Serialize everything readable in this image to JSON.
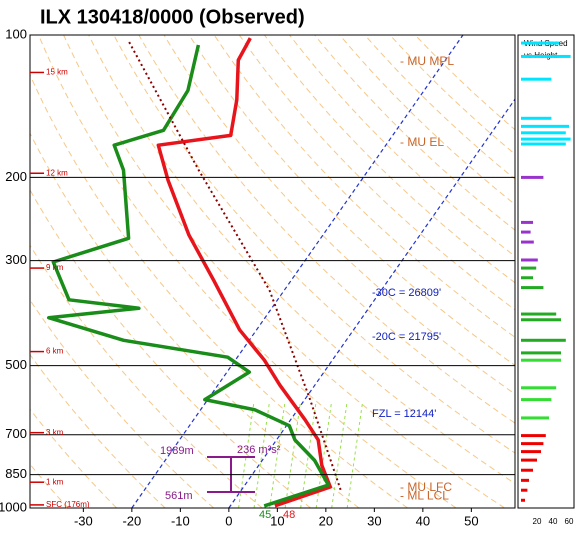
{
  "chart_data": {
    "type": "skew-t",
    "title": "ILX  130418/0000  (Observed)",
    "ylim": [
      100,
      1000
    ],
    "yticks": [
      100,
      200,
      300,
      500,
      700,
      850,
      1000
    ],
    "log_y": true,
    "xlim": [
      -41,
      59
    ],
    "xticks": [
      -30,
      -20,
      -10,
      0,
      10,
      20,
      30,
      40,
      50
    ],
    "series": [
      {
        "color": "#e8141c",
        "line_style": "solid",
        "pressure": [
          990,
          903,
          812,
          718,
          651,
          550,
          487,
          420,
          330,
          265,
          203,
          171,
          163,
          137,
          113,
          101.5
        ],
        "values": [
          9.2,
          17.9,
          13.0,
          8.6,
          3.0,
          -7.2,
          -14,
          -23.5,
          -36,
          -47.6,
          -59.8,
          -66.9,
          -53.4,
          -57.3,
          -62.7,
          -63.4
        ]
      },
      {
        "color": "#1a8c1a",
        "line_style": "solid",
        "pressure": [
          990,
          894,
          793,
          718,
          670,
          620,
          590,
          516,
          480,
          442,
          396,
          378,
          363,
          302,
          269,
          193,
          171,
          159,
          131,
          105
        ],
        "values": [
          7,
          17.2,
          10.8,
          3.8,
          0.6,
          -8.8,
          -20.6,
          -15.4,
          -22,
          -45.9,
          -64.6,
          -47.4,
          -63,
          -71.7,
          -59.6,
          -70.5,
          -76,
          -68,
          -68.7,
          -73.1
        ]
      },
      {
        "color": "#8b0000",
        "line_style": "dotted",
        "pressure": [
          915,
          590,
          346,
          193,
          102.5
        ],
        "values": [
          20.4,
          1.1,
          -23.1,
          -55,
          -88.3
        ]
      }
    ],
    "surface_temps_f": {
      "dewpoint": 45,
      "temperature": 48
    },
    "height_labels": [
      {
        "label": "15 km",
        "pressure": 120
      },
      {
        "label": "12 km",
        "pressure": 196
      },
      {
        "label": "9 km",
        "pressure": 311
      },
      {
        "label": "6 km",
        "pressure": 467
      },
      {
        "label": "3 km",
        "pressure": 693
      },
      {
        "label": "1 km",
        "pressure": 882
      },
      {
        "label": "SFC (176m)",
        "pressure": 985
      }
    ],
    "level_annotations": [
      {
        "label": "- MU MPL",
        "pressure": 114
      },
      {
        "label": "- MU EL",
        "pressure": 169
      },
      {
        "label": "- MU LFC",
        "pressure": 906
      },
      {
        "label": "- ML LCL",
        "pressure": 945
      }
    ],
    "height_annotations": [
      "-30C = 26809'",
      "-20C = 21795'",
      "FZL = 12144'"
    ],
    "helicity": {
      "top": "1989m",
      "value": "236 m²s²",
      "bottom": "561m"
    },
    "wind_profile": {
      "title": [
        "Wind Speed",
        "vs Height"
      ],
      "xlim": [
        0,
        65
      ],
      "xticks": [
        20,
        40,
        60
      ],
      "pressure": [
        104,
        111,
        124,
        150,
        156,
        161,
        166,
        170,
        200,
        249,
        261,
        274,
        299,
        311,
        326,
        342,
        389,
        400,
        442,
        470,
        487,
        557,
        590,
        645,
        703,
        731,
        760,
        792,
        832,
        874,
        917,
        963
      ],
      "values": [
        48,
        62,
        38,
        38,
        60,
        56,
        62,
        56,
        28,
        15,
        12,
        16,
        21,
        19,
        15,
        28,
        44,
        50,
        56,
        50,
        50,
        44,
        38,
        35,
        31,
        28,
        25,
        20,
        15,
        10,
        8,
        5
      ],
      "colors": [
        "#00e5ff",
        "#00e5ff",
        "#00e5ff",
        "#00e5ff",
        "#00e5ff",
        "#00e5ff",
        "#00e5ff",
        "#00e5ff",
        "#9933cc",
        "#9933cc",
        "#9933cc",
        "#9933cc",
        "#9933cc",
        "#22aa22",
        "#22aa22",
        "#22aa22",
        "#22aa22",
        "#22aa22",
        "#22aa22",
        "#22aa22",
        "#33dd33",
        "#33dd33",
        "#33dd33",
        "#33dd33",
        "#ee0000",
        "#ee0000",
        "#ee0000",
        "#ee0000",
        "#ee0000",
        "#ee0000",
        "#ee0000",
        "#ee0000"
      ]
    }
  }
}
